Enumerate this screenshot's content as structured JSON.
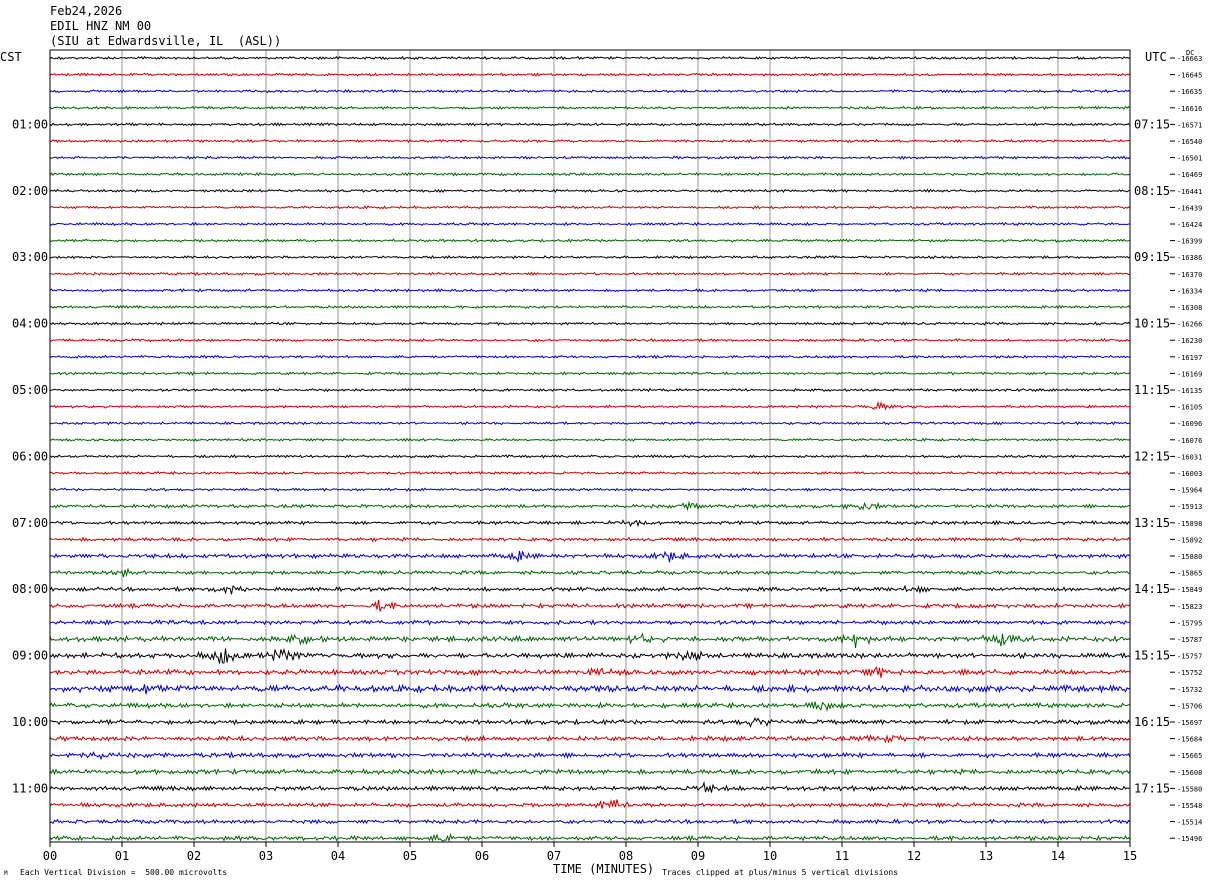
{
  "header": {
    "date": "Feb24,2026",
    "station": "EDIL HNZ NM 00",
    "location": "(SIU at Edwardsville, IL  (ASL))"
  },
  "left_axis_title": "CST",
  "right_axis_title": "UTC",
  "dc_title": "DC",
  "footer": {
    "scale_note": "Each Vertical Division =  500.00 microvolts",
    "xlabel": "TIME (MINUTES)",
    "clip_note": "Traces clipped at plus/minus 5 vertical divisions",
    "corner_mark": "M"
  },
  "colors": {
    "black": "#000000",
    "red": "#cc0000",
    "blue": "#0000cc",
    "green": "#006600",
    "grid": "#808080"
  },
  "chart_data": {
    "type": "line",
    "title": "EDIL HNZ NM 00",
    "xlabel": "TIME (MINUTES)",
    "xlim": [
      0,
      15
    ],
    "x_ticks": [
      "00",
      "01",
      "02",
      "03",
      "04",
      "05",
      "06",
      "07",
      "08",
      "09",
      "10",
      "11",
      "12",
      "13",
      "14",
      "15"
    ],
    "trace_interval_minutes": 15,
    "trace_count": 48,
    "color_cycle": [
      "black",
      "red",
      "blue",
      "green"
    ],
    "left_time_labels": [
      {
        "trace": 4,
        "label": "01:00"
      },
      {
        "trace": 8,
        "label": "02:00"
      },
      {
        "trace": 12,
        "label": "03:00"
      },
      {
        "trace": 16,
        "label": "04:00"
      },
      {
        "trace": 20,
        "label": "05:00"
      },
      {
        "trace": 24,
        "label": "06:00"
      },
      {
        "trace": 28,
        "label": "07:00"
      },
      {
        "trace": 32,
        "label": "08:00"
      },
      {
        "trace": 36,
        "label": "09:00"
      },
      {
        "trace": 40,
        "label": "10:00"
      },
      {
        "trace": 44,
        "label": "11:00"
      }
    ],
    "right_time_labels": [
      {
        "trace": 4,
        "label": "07:15"
      },
      {
        "trace": 8,
        "label": "08:15"
      },
      {
        "trace": 12,
        "label": "09:15"
      },
      {
        "trace": 16,
        "label": "10:15"
      },
      {
        "trace": 20,
        "label": "11:15"
      },
      {
        "trace": 24,
        "label": "12:15"
      },
      {
        "trace": 28,
        "label": "13:15"
      },
      {
        "trace": 32,
        "label": "14:15"
      },
      {
        "trace": 36,
        "label": "15:15"
      },
      {
        "trace": 40,
        "label": "16:15"
      },
      {
        "trace": 44,
        "label": "17:15"
      }
    ],
    "dc_offsets": [
      "-16663",
      "-16645",
      "-16635",
      "-16616",
      "-16571",
      "-16540",
      "-16501",
      "-16469",
      "-16441",
      "-16439",
      "-16424",
      "-16399",
      "-16386",
      "-16370",
      "-16334",
      "-16308",
      "-16266",
      "-16230",
      "-16197",
      "-16169",
      "-16135",
      "-16105",
      "-16096",
      "-16076",
      "-16031",
      "-16003",
      "-15964",
      "-15913",
      "-15898",
      "-15892",
      "-15880",
      "-15865",
      "-15849",
      "-15823",
      "-15795",
      "-15787",
      "-15757",
      "-15752",
      "-15732",
      "-15706",
      "-15697",
      "-15684",
      "-15665",
      "-15608",
      "-15580",
      "-15548",
      "-15514",
      "-15496"
    ],
    "trace_activity": [
      1,
      1,
      1,
      1,
      1,
      1,
      1,
      1,
      1,
      1,
      1,
      1,
      1,
      1,
      1,
      1,
      1,
      1,
      1,
      1,
      1,
      1,
      1,
      1,
      1,
      1,
      1,
      1.3,
      1.3,
      1.3,
      1.6,
      1.4,
      1.5,
      1.6,
      1.6,
      2,
      2,
      2,
      2.6,
      1.8,
      1.7,
      1.8,
      1.8,
      1.8,
      1.7,
      1.5,
      1.5,
      1.6
    ],
    "events": [
      {
        "trace": 21,
        "minute": 11.5,
        "amplitude": 4
      },
      {
        "trace": 27,
        "minute": 11.3,
        "amplitude": 5
      },
      {
        "trace": 27,
        "minute": 8.9,
        "amplitude": 3
      },
      {
        "trace": 28,
        "minute": 8.1,
        "amplitude": 4
      },
      {
        "trace": 30,
        "minute": 6.5,
        "amplitude": 4
      },
      {
        "trace": 30,
        "minute": 8.6,
        "amplitude": 4
      },
      {
        "trace": 31,
        "minute": 1.0,
        "amplitude": 4
      },
      {
        "trace": 32,
        "minute": 2.5,
        "amplitude": 5
      },
      {
        "trace": 32,
        "minute": 12.0,
        "amplitude": 4
      },
      {
        "trace": 33,
        "minute": 4.6,
        "amplitude": 4
      },
      {
        "trace": 35,
        "minute": 11.2,
        "amplitude": 8
      },
      {
        "trace": 35,
        "minute": 13.2,
        "amplitude": 9
      },
      {
        "trace": 35,
        "minute": 8.2,
        "amplitude": 4
      },
      {
        "trace": 35,
        "minute": 3.5,
        "amplitude": 4
      },
      {
        "trace": 36,
        "minute": 2.4,
        "amplitude": 10
      },
      {
        "trace": 36,
        "minute": 3.2,
        "amplitude": 9
      },
      {
        "trace": 36,
        "minute": 8.9,
        "amplitude": 5
      },
      {
        "trace": 37,
        "minute": 7.7,
        "amplitude": 4
      },
      {
        "trace": 37,
        "minute": 11.5,
        "amplitude": 4
      },
      {
        "trace": 38,
        "minute": 1.4,
        "amplitude": 4
      },
      {
        "trace": 39,
        "minute": 10.7,
        "amplitude": 4
      },
      {
        "trace": 40,
        "minute": 9.8,
        "amplitude": 5
      },
      {
        "trace": 41,
        "minute": 11.6,
        "amplitude": 5
      },
      {
        "trace": 42,
        "minute": 0.6,
        "amplitude": 4
      },
      {
        "trace": 44,
        "minute": 9.1,
        "amplitude": 4
      },
      {
        "trace": 45,
        "minute": 7.8,
        "amplitude": 6
      },
      {
        "trace": 47,
        "minute": 5.5,
        "amplitude": 4
      }
    ]
  }
}
